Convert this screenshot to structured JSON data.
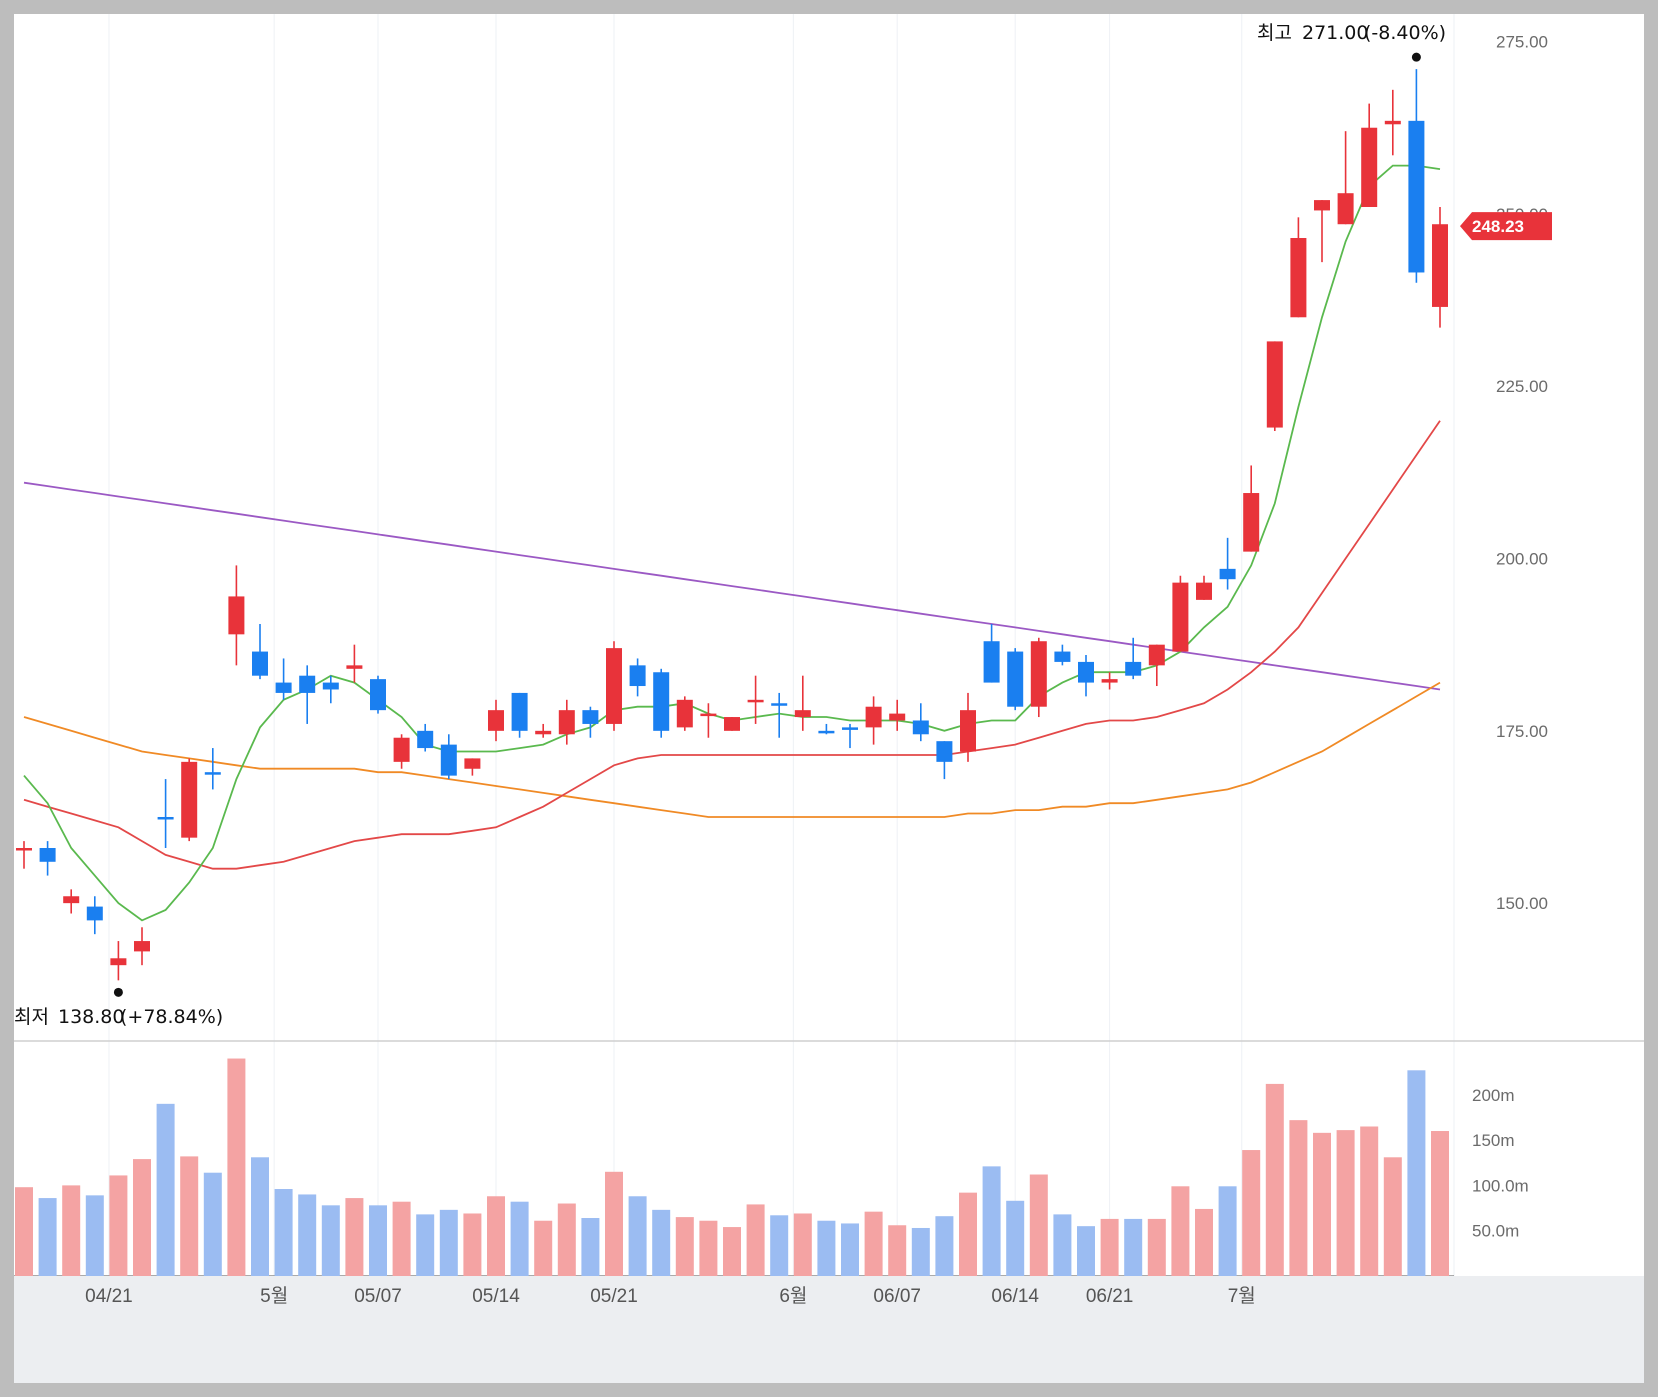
{
  "chart_data": {
    "type": "candlestick",
    "y_ticks": [
      "275.00",
      "250.00",
      "225.00",
      "200.00",
      "175.00",
      "150.00"
    ],
    "y_tick_values": [
      275,
      250,
      225,
      200,
      175,
      150
    ],
    "ylim": [
      130,
      279
    ],
    "volume_ticks": [
      "200m",
      "150m",
      "100.0m",
      "50.0m"
    ],
    "volume_tick_values": [
      200,
      150,
      100,
      50
    ],
    "volume_max": 245,
    "x_labels": [
      "04/21",
      "5월",
      "05/07",
      "05/14",
      "05/21",
      "6월",
      "06/07",
      "06/14",
      "06/21",
      "7월"
    ],
    "x_label_index": [
      3.6,
      10.6,
      15,
      20,
      25,
      32.6,
      37,
      42,
      46,
      51.6
    ],
    "current_price": "248.23",
    "high_annotation": {
      "label": "최고",
      "value": "271.00",
      "change": "(-8.40%)",
      "index": 59,
      "price": 271
    },
    "low_annotation": {
      "label": "최저",
      "value": "138.80",
      "change": "(+78.84%)",
      "index": 4,
      "price": 138.8
    },
    "colors": {
      "up": "#e8333a",
      "down": "#1a7ff0",
      "vol_up": "#f4a3a3",
      "vol_down": "#9bbcf2",
      "ma5": "#5ab94e",
      "ma20": "#e34848",
      "ma60": "#f08a25",
      "ma120": "#9b59c4",
      "badge": "#e8333a"
    },
    "candles": [
      {
        "o": 158.0,
        "h": 159.0,
        "l": 155.0,
        "c": 158.0,
        "v": 98,
        "d": "up"
      },
      {
        "o": 158.0,
        "h": 159.0,
        "l": 154.0,
        "c": 156.0,
        "v": 86,
        "d": "down"
      },
      {
        "o": 151.0,
        "h": 152.0,
        "l": 148.5,
        "c": 150.0,
        "v": 100,
        "d": "up"
      },
      {
        "o": 149.5,
        "h": 151.0,
        "l": 145.5,
        "c": 147.5,
        "v": 89,
        "d": "down"
      },
      {
        "o": 141.0,
        "h": 144.5,
        "l": 138.8,
        "c": 142.0,
        "v": 111,
        "d": "up"
      },
      {
        "o": 143.0,
        "h": 146.5,
        "l": 141.0,
        "c": 144.5,
        "v": 129,
        "d": "up"
      },
      {
        "o": 162.5,
        "h": 168.0,
        "l": 158.0,
        "c": 162.5,
        "v": 190,
        "d": "down"
      },
      {
        "o": 159.5,
        "h": 171.0,
        "l": 159.0,
        "c": 170.5,
        "v": 132,
        "d": "up"
      },
      {
        "o": 169.0,
        "h": 172.5,
        "l": 166.5,
        "c": 169.0,
        "v": 114,
        "d": "down"
      },
      {
        "o": 189.0,
        "h": 199.0,
        "l": 184.5,
        "c": 194.5,
        "v": 240,
        "d": "up"
      },
      {
        "o": 186.5,
        "h": 190.5,
        "l": 182.5,
        "c": 183.0,
        "v": 131,
        "d": "down"
      },
      {
        "o": 182.0,
        "h": 185.5,
        "l": 179.5,
        "c": 180.5,
        "v": 96,
        "d": "down"
      },
      {
        "o": 183.0,
        "h": 184.5,
        "l": 176.0,
        "c": 180.5,
        "v": 90,
        "d": "down"
      },
      {
        "o": 182.0,
        "h": 183.0,
        "l": 179.0,
        "c": 181.0,
        "v": 78,
        "d": "down"
      },
      {
        "o": 184.0,
        "h": 187.5,
        "l": 182.0,
        "c": 184.5,
        "v": 86,
        "d": "up"
      },
      {
        "o": 182.5,
        "h": 183.0,
        "l": 177.5,
        "c": 178.0,
        "v": 78,
        "d": "down"
      },
      {
        "o": 170.5,
        "h": 174.5,
        "l": 169.5,
        "c": 174.0,
        "v": 82,
        "d": "up"
      },
      {
        "o": 175.0,
        "h": 176.0,
        "l": 172.0,
        "c": 172.5,
        "v": 68,
        "d": "down"
      },
      {
        "o": 173.0,
        "h": 174.5,
        "l": 168.0,
        "c": 168.5,
        "v": 73,
        "d": "down"
      },
      {
        "o": 169.5,
        "h": 171.0,
        "l": 168.5,
        "c": 171.0,
        "v": 69,
        "d": "up"
      },
      {
        "o": 175.0,
        "h": 179.5,
        "l": 173.5,
        "c": 178.0,
        "v": 88,
        "d": "up"
      },
      {
        "o": 180.5,
        "h": 180.5,
        "l": 174.0,
        "c": 175.0,
        "v": 82,
        "d": "down"
      },
      {
        "o": 174.5,
        "h": 176.0,
        "l": 174.0,
        "c": 175.0,
        "v": 61,
        "d": "up"
      },
      {
        "o": 174.5,
        "h": 179.5,
        "l": 173.0,
        "c": 178.0,
        "v": 80,
        "d": "up"
      },
      {
        "o": 178.0,
        "h": 178.5,
        "l": 174.0,
        "c": 176.0,
        "v": 64,
        "d": "down"
      },
      {
        "o": 176.0,
        "h": 188.0,
        "l": 175.0,
        "c": 187.0,
        "v": 115,
        "d": "up"
      },
      {
        "o": 184.5,
        "h": 185.5,
        "l": 180.0,
        "c": 181.5,
        "v": 88,
        "d": "down"
      },
      {
        "o": 183.5,
        "h": 184.0,
        "l": 174.0,
        "c": 175.0,
        "v": 73,
        "d": "down"
      },
      {
        "o": 175.5,
        "h": 180.0,
        "l": 175.0,
        "c": 179.5,
        "v": 65,
        "d": "up"
      },
      {
        "o": 177.5,
        "h": 179.0,
        "l": 174.0,
        "c": 177.5,
        "v": 61,
        "d": "up"
      },
      {
        "o": 175.0,
        "h": 177.0,
        "l": 175.0,
        "c": 177.0,
        "v": 54,
        "d": "up"
      },
      {
        "o": 179.5,
        "h": 183.0,
        "l": 176.0,
        "c": 179.5,
        "v": 79,
        "d": "up"
      },
      {
        "o": 179.0,
        "h": 180.5,
        "l": 174.0,
        "c": 179.0,
        "v": 67,
        "d": "down"
      },
      {
        "o": 178.0,
        "h": 183.0,
        "l": 175.0,
        "c": 177.0,
        "v": 69,
        "d": "up"
      },
      {
        "o": 175.0,
        "h": 176.0,
        "l": 174.5,
        "c": 175.0,
        "v": 61,
        "d": "down"
      },
      {
        "o": 175.5,
        "h": 176.0,
        "l": 172.5,
        "c": 175.5,
        "v": 58,
        "d": "down"
      },
      {
        "o": 175.5,
        "h": 180.0,
        "l": 173.0,
        "c": 178.5,
        "v": 71,
        "d": "up"
      },
      {
        "o": 176.5,
        "h": 179.5,
        "l": 175.0,
        "c": 177.5,
        "v": 56,
        "d": "up"
      },
      {
        "o": 176.5,
        "h": 179.0,
        "l": 173.5,
        "c": 174.5,
        "v": 53,
        "d": "down"
      },
      {
        "o": 173.5,
        "h": 173.5,
        "l": 168.0,
        "c": 170.5,
        "v": 66,
        "d": "down"
      },
      {
        "o": 172.0,
        "h": 180.5,
        "l": 170.5,
        "c": 178.0,
        "v": 92,
        "d": "up"
      },
      {
        "o": 188.0,
        "h": 190.5,
        "l": 182.0,
        "c": 182.0,
        "v": 121,
        "d": "down"
      },
      {
        "o": 186.5,
        "h": 187.0,
        "l": 178.0,
        "c": 178.5,
        "v": 83,
        "d": "down"
      },
      {
        "o": 178.5,
        "h": 188.5,
        "l": 177.0,
        "c": 188.0,
        "v": 112,
        "d": "up"
      },
      {
        "o": 186.5,
        "h": 187.5,
        "l": 184.5,
        "c": 185.0,
        "v": 68,
        "d": "down"
      },
      {
        "o": 185.0,
        "h": 186.0,
        "l": 180.0,
        "c": 182.0,
        "v": 55,
        "d": "down"
      },
      {
        "o": 182.0,
        "h": 183.5,
        "l": 181.0,
        "c": 182.5,
        "v": 63,
        "d": "up"
      },
      {
        "o": 185.0,
        "h": 188.5,
        "l": 182.5,
        "c": 183.0,
        "v": 63,
        "d": "down"
      },
      {
        "o": 184.5,
        "h": 187.5,
        "l": 181.5,
        "c": 187.5,
        "v": 63,
        "d": "up"
      },
      {
        "o": 186.5,
        "h": 197.5,
        "l": 186.5,
        "c": 196.5,
        "v": 99,
        "d": "up"
      },
      {
        "o": 194.0,
        "h": 197.5,
        "l": 194.0,
        "c": 196.5,
        "v": 74,
        "d": "up"
      },
      {
        "o": 198.5,
        "h": 203.0,
        "l": 195.5,
        "c": 197.0,
        "v": 99,
        "d": "down"
      },
      {
        "o": 201.0,
        "h": 213.5,
        "l": 201.0,
        "c": 209.5,
        "v": 139,
        "d": "up"
      },
      {
        "o": 219.0,
        "h": 231.5,
        "l": 218.5,
        "c": 231.5,
        "v": 212,
        "d": "up"
      },
      {
        "o": 235.0,
        "h": 249.5,
        "l": 235.0,
        "c": 246.5,
        "v": 172,
        "d": "up"
      },
      {
        "o": 250.5,
        "h": 252.0,
        "l": 243.0,
        "c": 252.0,
        "v": 158,
        "d": "up"
      },
      {
        "o": 248.5,
        "h": 262.0,
        "l": 248.5,
        "c": 253.0,
        "v": 161,
        "d": "up"
      },
      {
        "o": 251.0,
        "h": 266.0,
        "l": 251.0,
        "c": 262.5,
        "v": 165,
        "d": "up"
      },
      {
        "o": 263.0,
        "h": 268.0,
        "l": 258.5,
        "c": 263.5,
        "v": 131,
        "d": "up"
      },
      {
        "o": 263.5,
        "h": 271.0,
        "l": 240.0,
        "c": 241.5,
        "v": 227,
        "d": "down"
      },
      {
        "o": 236.5,
        "h": 251.0,
        "l": 233.5,
        "c": 248.5,
        "v": 160,
        "d": "up"
      }
    ],
    "ma5": [
      168.5,
      164.5,
      158,
      154,
      150,
      147.5,
      149,
      153,
      158,
      168,
      175.5,
      179.5,
      181,
      183,
      182,
      179.5,
      177,
      173,
      172,
      172,
      172,
      172.5,
      173,
      174.5,
      175.5,
      178,
      178.5,
      178.5,
      179,
      177.5,
      176.5,
      177,
      177.5,
      177,
      177,
      176.5,
      176.5,
      176.5,
      176,
      175,
      176,
      176.5,
      176.5,
      180,
      182,
      183.5,
      183.5,
      183.5,
      184.5,
      186.5,
      190,
      193,
      199,
      208,
      222,
      235,
      246,
      254,
      257,
      257,
      256.5
    ],
    "ma20": [
      165,
      164,
      163,
      162,
      161,
      159,
      157,
      156,
      155,
      155,
      155.5,
      156,
      157,
      158,
      159,
      159.5,
      160,
      160,
      160,
      160.5,
      161,
      162.5,
      164,
      166,
      168,
      170,
      171,
      171.5,
      171.5,
      171.5,
      171.5,
      171.5,
      171.5,
      171.5,
      171.5,
      171.5,
      171.5,
      171.5,
      171.5,
      171.5,
      172,
      172.5,
      173,
      174,
      175,
      176,
      176.5,
      176.5,
      177,
      178,
      179,
      181,
      183.5,
      186.5,
      190,
      195,
      200,
      205,
      210,
      215,
      220
    ],
    "ma60": [
      177,
      176,
      175,
      174,
      173,
      172,
      171.5,
      171,
      170.5,
      170,
      169.5,
      169.5,
      169.5,
      169.5,
      169.5,
      169,
      169,
      168.5,
      168,
      167.5,
      167,
      166.5,
      166,
      165.5,
      165,
      164.5,
      164,
      163.5,
      163,
      162.5,
      162.5,
      162.5,
      162.5,
      162.5,
      162.5,
      162.5,
      162.5,
      162.5,
      162.5,
      162.5,
      163,
      163,
      163.5,
      163.5,
      164,
      164,
      164.5,
      164.5,
      165,
      165.5,
      166,
      166.5,
      167.5,
      169,
      170.5,
      172,
      174,
      176,
      178,
      180,
      182
    ],
    "ma120": [
      211,
      210.5,
      210,
      209.5,
      209,
      208.5,
      208,
      207.5,
      207,
      206.5,
      206,
      205.5,
      205,
      204.5,
      204,
      203.5,
      203,
      202.5,
      202,
      201.5,
      201,
      200.5,
      200,
      199.5,
      199,
      198.5,
      198,
      197.5,
      197,
      196.5,
      196,
      195.5,
      195,
      194.5,
      194,
      193.5,
      193,
      192.5,
      192,
      191.5,
      191,
      190.5,
      190,
      189.5,
      189,
      188.5,
      188,
      187.5,
      187,
      186.5,
      186,
      185.5,
      185,
      184.5,
      184,
      183.5,
      183,
      182.5,
      182,
      181.5,
      181
    ]
  }
}
